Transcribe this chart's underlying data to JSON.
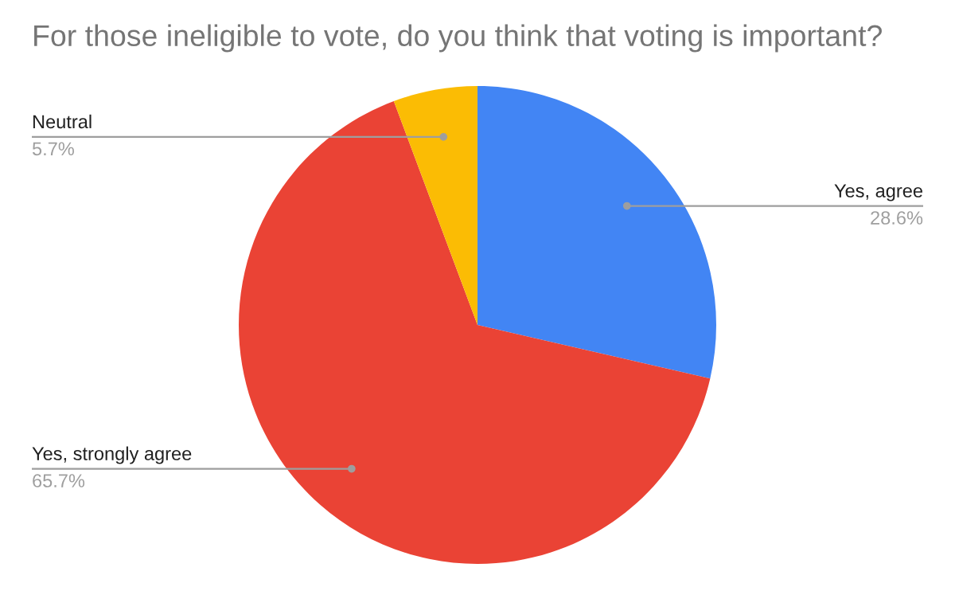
{
  "chart_data": {
    "type": "pie",
    "title": "For those ineligible to vote, do you think that voting is important?",
    "categories": [
      "Yes, agree",
      "Yes, strongly agree",
      "Neutral"
    ],
    "values": [
      28.6,
      65.7,
      5.7
    ],
    "colors": [
      "#4285f4",
      "#ea4335",
      "#fbbc04"
    ],
    "value_labels": [
      "28.6%",
      "65.7%",
      "5.7%"
    ],
    "legend": false
  }
}
